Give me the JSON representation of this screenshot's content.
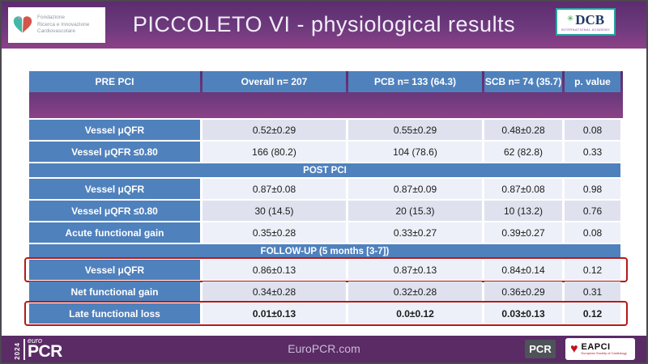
{
  "header": {
    "title": "PICCOLETO VI - physiological results",
    "fondazione_logo": {
      "lines": [
        "Fondazione",
        "Ricerca e Innovazione",
        "Cardiovascolare"
      ]
    },
    "dcb_logo": {
      "name": "DCB",
      "subtitle": "INTERNATIONAL ACADEMY"
    }
  },
  "table": {
    "rows": [
      {
        "type": "header",
        "label": "PRE PCI",
        "cells": [
          "Overall n= 207",
          "PCB n= 133 (64.3)",
          "SCB n= 74 (35.7)",
          "p. value"
        ]
      },
      {
        "type": "data",
        "shade": "dark",
        "label": "Vessel μQFR",
        "cells": [
          "0.52±0.29",
          "0.55±0.29",
          "0.48±0.28",
          "0.08"
        ]
      },
      {
        "type": "data",
        "shade": "light",
        "label": "Vessel μQFR ≤0.80",
        "cells": [
          "166 (80.2)",
          "104 (78.6)",
          "62 (82.8)",
          "0.33"
        ]
      },
      {
        "type": "band",
        "label": "POST PCI"
      },
      {
        "type": "data",
        "shade": "light",
        "label": "Vessel μQFR",
        "cells": [
          "0.87±0.08",
          "0.87±0.09",
          "0.87±0.08",
          "0.98"
        ]
      },
      {
        "type": "data",
        "shade": "dark",
        "label": "Vessel μQFR ≤0.80",
        "cells": [
          "30 (14.5)",
          "20 (15.3)",
          "10 (13.2)",
          "0.76"
        ]
      },
      {
        "type": "data",
        "shade": "light",
        "label": "Acute functional gain",
        "cells": [
          "0.35±0.28",
          "0.33±0.27",
          "0.39±0.27",
          "0.08"
        ]
      },
      {
        "type": "band",
        "label": "FOLLOW-UP (5 months [3-7])"
      },
      {
        "type": "data",
        "shade": "light",
        "highlighted": true,
        "label": "Vessel μQFR",
        "cells": [
          "0.86±0.13",
          "0.87±0.13",
          "0.84±0.14",
          "0.12"
        ]
      },
      {
        "type": "data",
        "shade": "dark",
        "label": "Net functional gain",
        "cells": [
          "0.34±0.28",
          "0.32±0.28",
          "0.36±0.29",
          "0.31"
        ]
      },
      {
        "type": "data",
        "shade": "light",
        "highlighted": true,
        "bold": true,
        "label": "Late functional loss",
        "cells": [
          "0.01±0.13",
          "0.0±0.12",
          "0.03±0.13",
          "0.12"
        ]
      }
    ]
  },
  "footer": {
    "europcr_logo": {
      "year": "2024",
      "euro": "euro",
      "pcr": "PCR"
    },
    "site": "EuroPCR.com",
    "pcr_badge": "PCR",
    "eapci": {
      "name": "EAPCI",
      "tagline": "European Society of Cardiology"
    }
  },
  "colors": {
    "header_purple_top": "#5c2d6e",
    "header_purple_bottom": "#8c4187",
    "footer_purple": "#5b2b66",
    "table_blue": "#4f81bd",
    "row_light": "#edf0f8",
    "row_dark": "#dfe2ee",
    "highlight_red": "#b51a1a",
    "dcb_teal": "#2aa5a0"
  }
}
